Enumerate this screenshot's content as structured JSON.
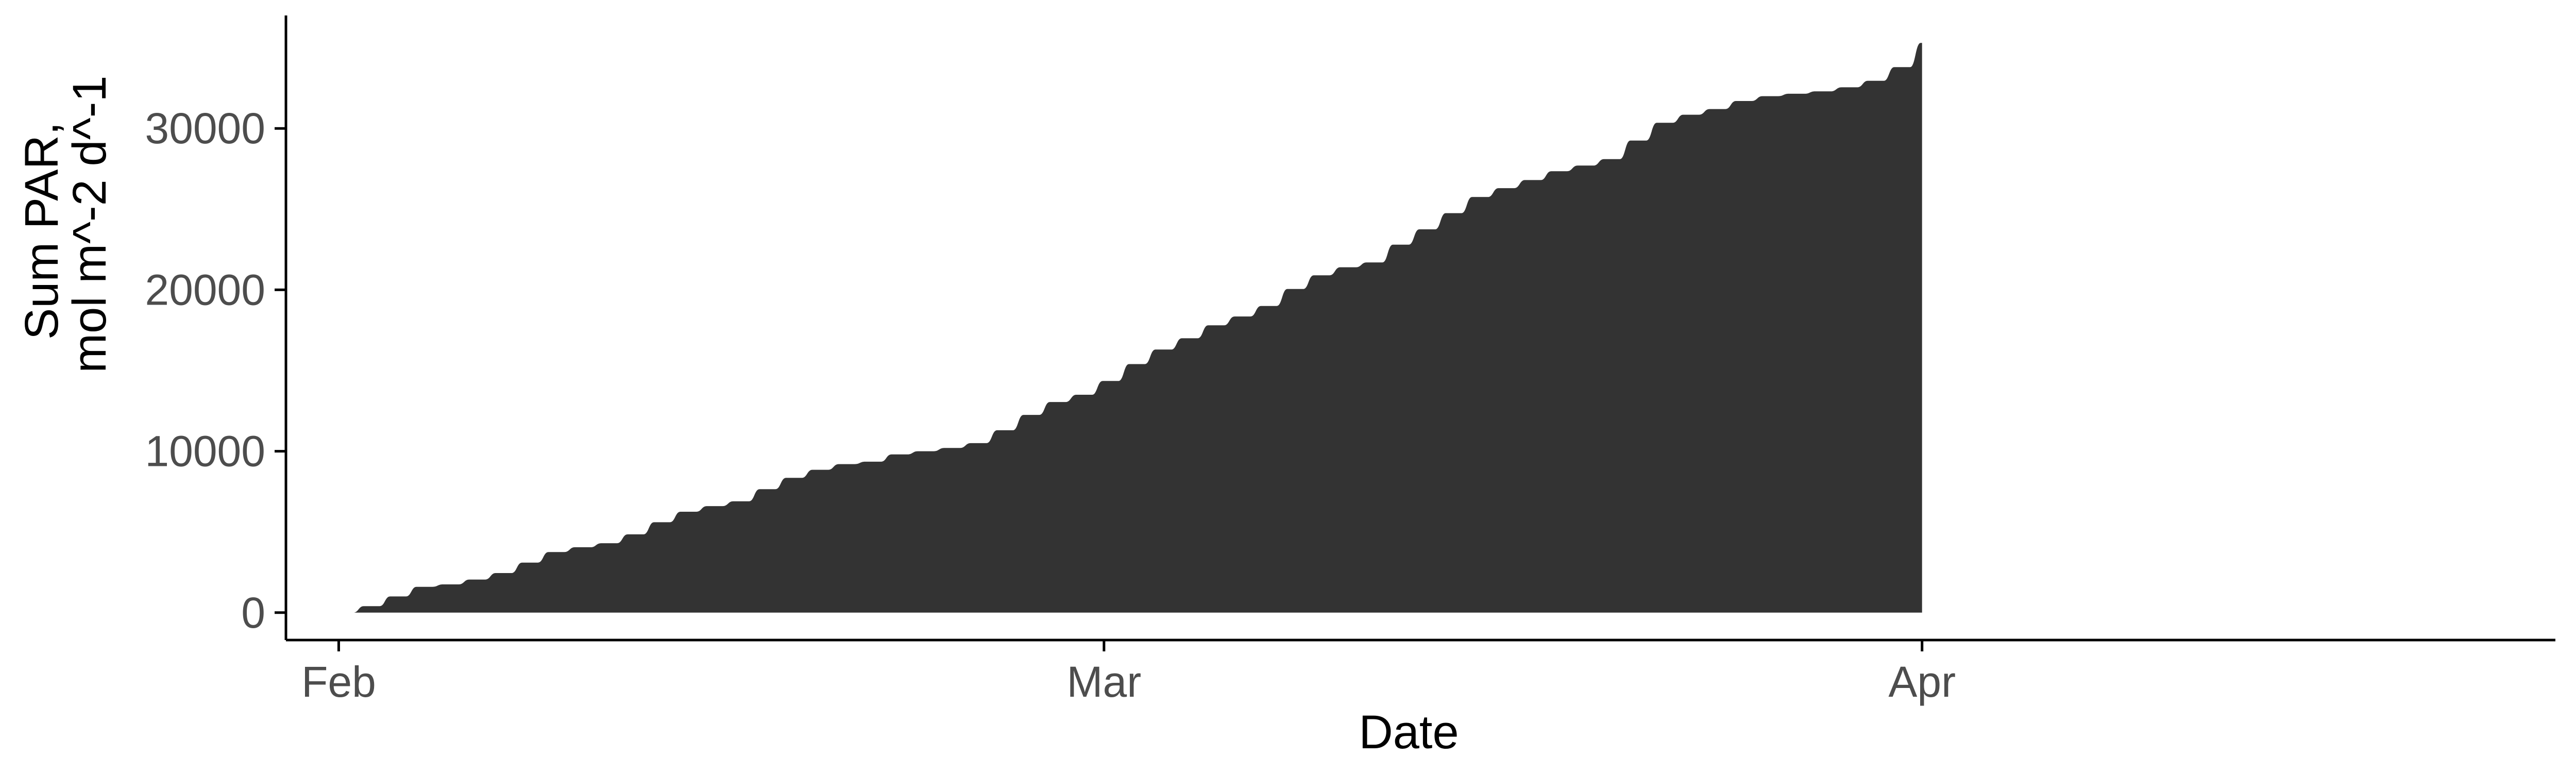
{
  "chart_data": {
    "type": "area",
    "xlabel": "Date",
    "ylabel_lines": [
      "Sum PAR,",
      "mol m^-2 d^-1"
    ],
    "x_tick_labels": [
      {
        "date": "2020-02-01",
        "label": "Feb"
      },
      {
        "date": "2020-03-01",
        "label": "Mar"
      },
      {
        "date": "2020-04-01",
        "label": "Apr"
      }
    ],
    "y_ticks": [
      0,
      10000,
      20000,
      30000
    ],
    "xlim": [
      "2020-01-30",
      "2020-04-25"
    ],
    "ylim": [
      -1700,
      37000
    ],
    "grid": false,
    "legend": "none",
    "fill_color": "#333333",
    "series": [
      {
        "x": [
          "2020-02-01",
          "2020-02-02",
          "2020-02-03",
          "2020-02-04",
          "2020-02-05",
          "2020-02-06",
          "2020-02-07",
          "2020-02-08",
          "2020-02-09",
          "2020-02-10",
          "2020-02-11",
          "2020-02-12",
          "2020-02-13",
          "2020-02-14",
          "2020-02-15",
          "2020-02-16",
          "2020-02-17",
          "2020-02-18",
          "2020-02-19",
          "2020-02-20",
          "2020-02-21",
          "2020-02-22",
          "2020-02-23",
          "2020-02-24",
          "2020-02-25",
          "2020-02-26",
          "2020-02-27",
          "2020-02-28",
          "2020-02-29",
          "2020-03-01",
          "2020-03-02",
          "2020-03-03",
          "2020-03-04",
          "2020-03-05",
          "2020-03-06",
          "2020-03-07",
          "2020-03-08",
          "2020-03-09",
          "2020-03-10",
          "2020-03-11",
          "2020-03-12",
          "2020-03-13",
          "2020-03-14",
          "2020-03-15",
          "2020-03-16",
          "2020-03-17",
          "2020-03-18",
          "2020-03-19",
          "2020-03-20",
          "2020-03-21",
          "2020-03-22",
          "2020-03-23",
          "2020-03-24",
          "2020-03-25",
          "2020-03-26",
          "2020-03-27",
          "2020-03-28",
          "2020-03-29",
          "2020-03-30",
          "2020-03-31",
          "2020-04-01"
        ],
        "y": [
          0,
          400,
          1000,
          1600,
          1750,
          2050,
          2450,
          3100,
          3750,
          4050,
          4300,
          4850,
          5600,
          6250,
          6600,
          6900,
          7650,
          8350,
          8850,
          9200,
          9350,
          9800,
          10000,
          10200,
          10500,
          11300,
          12250,
          13050,
          13500,
          14350,
          15400,
          16300,
          17000,
          17800,
          18350,
          19000,
          20050,
          20900,
          21400,
          21700,
          22800,
          23750,
          24750,
          25750,
          26300,
          26800,
          27350,
          27700,
          28100,
          29250,
          30350,
          30850,
          31200,
          31700,
          32000,
          32150,
          32300,
          32550,
          32950,
          33800,
          35300
        ]
      }
    ]
  }
}
